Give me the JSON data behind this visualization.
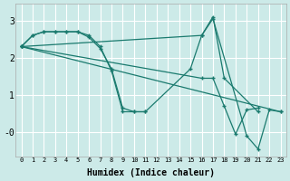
{
  "xlabel": "Humidex (Indice chaleur)",
  "bg_color": "#cceae8",
  "line_color": "#1a7a6e",
  "grid_color": "#ffffff",
  "xlim": [
    -0.5,
    23.5
  ],
  "ylim": [
    -0.65,
    3.45
  ],
  "series": [
    {
      "x": [
        0,
        1,
        2,
        3,
        4,
        5,
        6,
        7,
        8,
        9,
        10,
        11
      ],
      "y": [
        2.3,
        2.6,
        2.7,
        2.7,
        2.7,
        2.7,
        2.6,
        2.3,
        1.65,
        0.55,
        0.55,
        0.55
      ]
    },
    {
      "x": [
        0,
        1,
        2,
        3,
        4,
        5,
        6,
        7,
        8,
        9,
        10,
        11,
        15,
        16,
        17,
        18,
        21
      ],
      "y": [
        2.3,
        2.6,
        2.7,
        2.7,
        2.7,
        2.7,
        2.55,
        2.25,
        1.7,
        0.65,
        0.55,
        0.55,
        1.7,
        2.6,
        3.1,
        1.45,
        0.55
      ]
    },
    {
      "x": [
        0,
        23
      ],
      "y": [
        2.3,
        0.55
      ]
    },
    {
      "x": [
        0,
        16,
        17,
        18,
        19,
        20,
        21
      ],
      "y": [
        2.3,
        1.45,
        1.45,
        0.7,
        -0.05,
        0.6,
        0.65
      ]
    },
    {
      "x": [
        0,
        16,
        17,
        20,
        21,
        22,
        23
      ],
      "y": [
        2.3,
        2.6,
        3.05,
        -0.1,
        -0.45,
        0.6,
        0.55
      ]
    }
  ]
}
